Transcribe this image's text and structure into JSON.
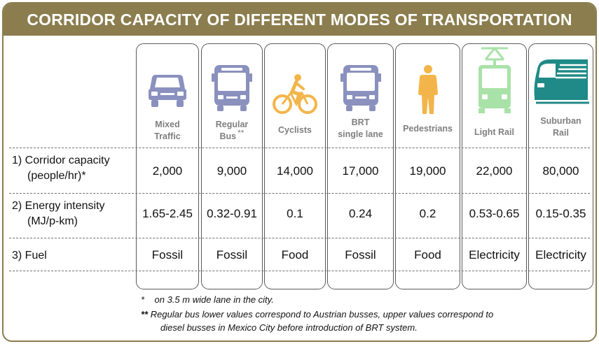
{
  "title": "CORRIDOR CAPACITY OF DIFFERENT MODES OF TRANSPORTATION",
  "modes": [
    {
      "icon": "car-icon",
      "label_line1": "Mixed",
      "label_line2": "Traffic",
      "sup": ""
    },
    {
      "icon": "bus-icon",
      "label_line1": "Regular",
      "label_line2": "Bus",
      "sup": "**"
    },
    {
      "icon": "bicycle-icon",
      "label_line1": "Cyclists",
      "label_line2": "",
      "sup": ""
    },
    {
      "icon": "bus-icon",
      "label_line1": "BRT",
      "label_line2": "single lane",
      "sup": ""
    },
    {
      "icon": "pedestrian-icon",
      "label_line1": "Pedestrians",
      "label_line2": "",
      "sup": ""
    },
    {
      "icon": "tram-icon",
      "label_line1": "Light Rail",
      "label_line2": "",
      "sup": ""
    },
    {
      "icon": "train-icon",
      "label_line1": "Suburban",
      "label_line2": "Rail",
      "sup": ""
    }
  ],
  "rows": [
    {
      "label_line1": "1) Corridor capacity",
      "label_line2": "(people/hr)*",
      "values": [
        "2,000",
        "9,000",
        "14,000",
        "17,000",
        "19,000",
        "22,000",
        "80,000"
      ]
    },
    {
      "label_line1": "2) Energy intensity",
      "label_line2": "(MJ/p-km)",
      "values": [
        "1.65-2.45",
        "0.32-0.91",
        "0.1",
        "0.24",
        "0.2",
        "0.53-0.65",
        "0.15-0.35"
      ]
    },
    {
      "label_line1": "3) Fuel",
      "label_line2": "",
      "values": [
        "Fossil",
        "Fossil",
        "Food",
        "Fossil",
        "Food",
        "Electricity",
        "Electricity"
      ]
    }
  ],
  "notes": {
    "note1_marker": "*",
    "note1": "on 3.5 m wide lane in the city.",
    "note2_marker": "**",
    "note2_line1": "Regular bus lower values correspond to Austrian busses, upper values correspond   to",
    "note2_line2": "diesel busses in Mexico City before introduction of BRT system."
  },
  "colors": {
    "banner": "#8b7d4e",
    "vehicle_icon": "#8a91bf",
    "cyclist_icon": "#f3b54a",
    "pedestrian_icon": "#f3b54a",
    "light_rail_icon": "#a9e2a8",
    "suburban_rail_icon": "#1f8a87"
  }
}
